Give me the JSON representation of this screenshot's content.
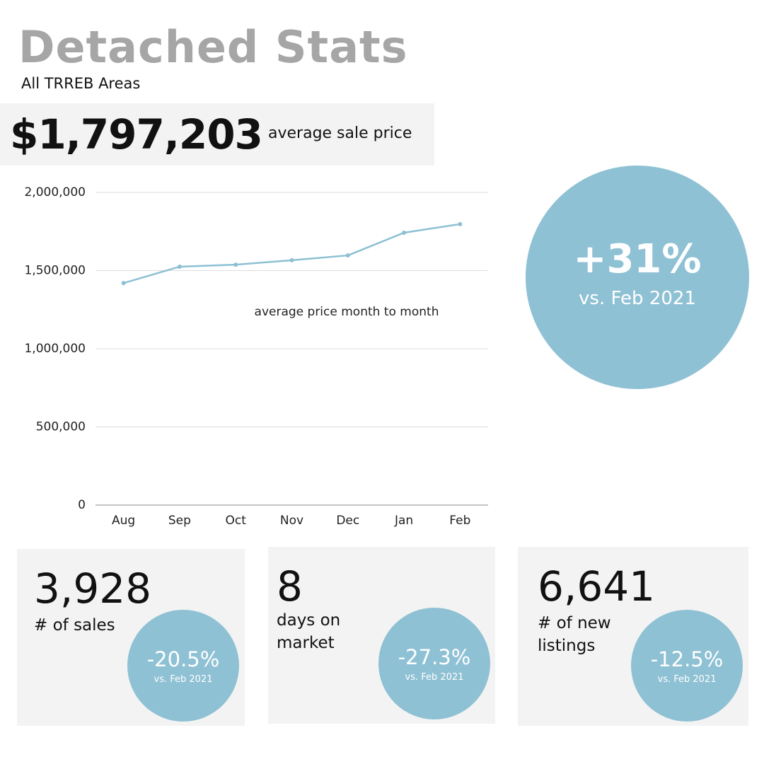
{
  "header": {
    "title": "Detached Stats",
    "subtitle": "All TRREB Areas"
  },
  "headline": {
    "value": "$1,797,203",
    "label": "average sale price"
  },
  "chart_data": {
    "type": "line",
    "annotation": "average price month to month",
    "categories": [
      "Aug",
      "Sep",
      "Oct",
      "Nov",
      "Dec",
      "Jan",
      "Feb"
    ],
    "series": [
      {
        "color": "#8cc0d3",
        "values": [
          1420000,
          1525000,
          1538000,
          1566000,
          1597000,
          1742000,
          1797203
        ]
      }
    ],
    "ylim": [
      0,
      2000000
    ],
    "yticks": [
      0,
      {
        "value": 500000,
        "label": "500,000"
      },
      {
        "value": 1000000,
        "label": "1,000,000"
      },
      {
        "value": 1500000,
        "label": "1,500,000"
      },
      {
        "value": 2000000,
        "label": "2,000,000"
      }
    ],
    "grid": true
  },
  "comparison": {
    "change": "+31%",
    "label": "vs. Feb 2021"
  },
  "stats": [
    {
      "value": "3,928",
      "label": "# of sales",
      "change": "-20.5%",
      "compare": "vs. Feb 2021"
    },
    {
      "value": "8",
      "label": "days on market",
      "change": "-27.3%",
      "compare": "vs. Feb 2021"
    },
    {
      "value": "6,641",
      "label": "# of new listings",
      "change": "-12.5%",
      "compare": "vs. Feb 2021"
    }
  ]
}
